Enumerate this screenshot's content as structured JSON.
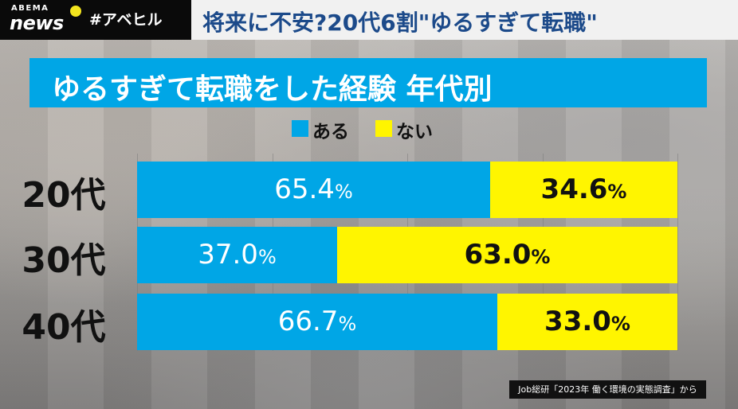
{
  "header": {
    "logo_top": "ABEMA",
    "logo_bottom": "news",
    "hashtag": "#アベヒル",
    "headline": "将来に不安?20代6割\"ゆるすぎて転職\""
  },
  "colors": {
    "aru": "#00a6e6",
    "nai": "#fff500",
    "title_bg": "#00a6e6",
    "headline_text": "#1c4a8a"
  },
  "chart_data": {
    "type": "bar",
    "orientation": "horizontal",
    "stacked": true,
    "title": "ゆるすぎて転職をした経験 年代別",
    "categories": [
      "20代",
      "30代",
      "40代"
    ],
    "series": [
      {
        "name": "ある",
        "values": [
          65.4,
          37.0,
          66.7
        ],
        "color": "#00a6e6"
      },
      {
        "name": "ない",
        "values": [
          34.6,
          63.0,
          33.0
        ],
        "color": "#fff500"
      }
    ],
    "value_labels": [
      [
        "65.4",
        "37.0",
        "66.7"
      ],
      [
        "34.6",
        "63.0",
        "33.0"
      ]
    ],
    "unit": "%",
    "xlim": [
      0,
      100
    ],
    "legend": "top-center",
    "grid": true
  },
  "source": "Job総研「2023年 働く環境の実態調査」から"
}
